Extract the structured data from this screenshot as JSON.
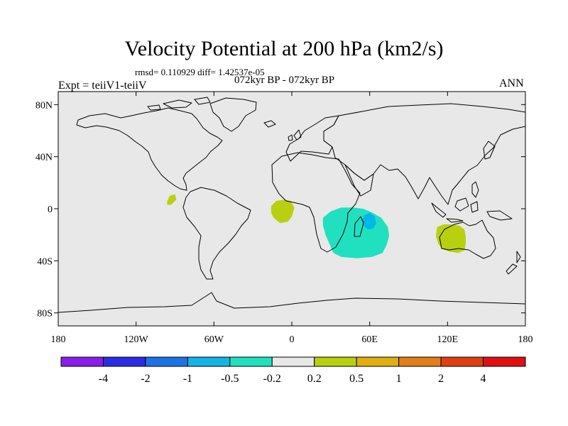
{
  "title": "Velocity Potential at 200 hPa (km2/s)",
  "stats": "rmsd= 0.110929 diff= 1.42537e-05",
  "period": "072kyr BP - 072kyr BP",
  "experiment": "Expt = teiiV1-teiiV",
  "season": "ANN",
  "map": {
    "background_color": "#e8e8e8",
    "lat_ticks": [
      {
        "value": 80,
        "label": "80N"
      },
      {
        "value": 40,
        "label": "40N"
      },
      {
        "value": 0,
        "label": "0"
      },
      {
        "value": -40,
        "label": "40S"
      },
      {
        "value": -80,
        "label": "80S"
      }
    ],
    "lon_ticks": [
      {
        "value": -180,
        "label": "180"
      },
      {
        "value": -120,
        "label": "120W"
      },
      {
        "value": -60,
        "label": "60W"
      },
      {
        "value": 0,
        "label": "0"
      },
      {
        "value": 60,
        "label": "60E"
      },
      {
        "value": 120,
        "label": "120E"
      },
      {
        "value": 180,
        "label": "180"
      }
    ],
    "anomaly_regions": [
      {
        "name": "central-america",
        "color": "#b8d010",
        "points": [
          [
            -96,
            6
          ],
          [
            -94,
            10
          ],
          [
            -90,
            11
          ],
          [
            -89,
            7
          ],
          [
            -93,
            3
          ],
          [
            -96,
            3
          ]
        ]
      },
      {
        "name": "gulf-of-guinea",
        "color": "#b8d010",
        "points": [
          [
            -16,
            2
          ],
          [
            -12,
            6
          ],
          [
            -6,
            7
          ],
          [
            -1,
            6
          ],
          [
            2,
            1
          ],
          [
            0,
            -6
          ],
          [
            -3,
            -10
          ],
          [
            -9,
            -11
          ],
          [
            -14,
            -7
          ],
          [
            -16,
            -3
          ]
        ]
      },
      {
        "name": "south-indian-ocean",
        "color": "#20e0c0",
        "points": [
          [
            24,
            -7
          ],
          [
            30,
            -2
          ],
          [
            38,
            1
          ],
          [
            47,
            1
          ],
          [
            55,
            0
          ],
          [
            62,
            -3
          ],
          [
            69,
            -7
          ],
          [
            74,
            -14
          ],
          [
            75,
            -21
          ],
          [
            73,
            -28
          ],
          [
            70,
            -34
          ],
          [
            62,
            -37
          ],
          [
            50,
            -38
          ],
          [
            38,
            -37
          ],
          [
            32,
            -34
          ],
          [
            29,
            -27
          ],
          [
            26,
            -20
          ],
          [
            24,
            -13
          ]
        ]
      },
      {
        "name": "south-indian-ocean-core",
        "color": "#00b8e8",
        "points": [
          [
            56,
            -5
          ],
          [
            60,
            -3
          ],
          [
            64,
            -6
          ],
          [
            65,
            -11
          ],
          [
            63,
            -15
          ],
          [
            59,
            -16
          ],
          [
            56,
            -14
          ],
          [
            54,
            -9
          ]
        ]
      },
      {
        "name": "australia",
        "color": "#b8d010",
        "points": [
          [
            112,
            -14
          ],
          [
            117,
            -12
          ],
          [
            123,
            -12
          ],
          [
            129,
            -13
          ],
          [
            133,
            -16
          ],
          [
            134,
            -21
          ],
          [
            134,
            -27
          ],
          [
            133,
            -32
          ],
          [
            128,
            -34
          ],
          [
            122,
            -33
          ],
          [
            116,
            -31
          ],
          [
            113,
            -27
          ],
          [
            111,
            -21
          ]
        ]
      }
    ]
  },
  "colorbar": {
    "colors": [
      "#8a1ee8",
      "#2c2ce4",
      "#1c74e4",
      "#14b4e4",
      "#20e0c0",
      "#e8e8e8",
      "#b8d010",
      "#e0b010",
      "#e08018",
      "#e04010",
      "#e01010"
    ],
    "labels": [
      "-4",
      "-2",
      "-1",
      "-0.5",
      "-0.2",
      "0.2",
      "0.5",
      "1",
      "2",
      "4"
    ]
  }
}
